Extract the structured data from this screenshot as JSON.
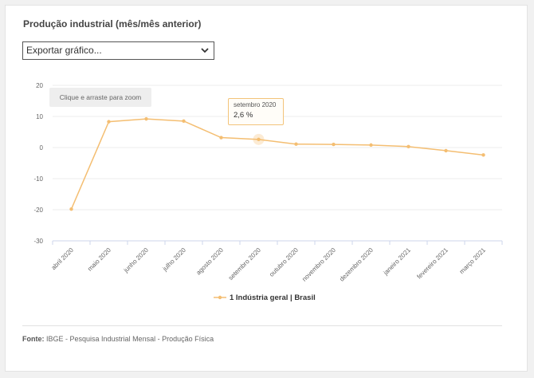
{
  "title": "Produção industrial (mês/mês anterior)",
  "export_select": {
    "label": "Exportar gráfico..."
  },
  "zoom_hint": "Clique e arraste para zoom",
  "tooltip": {
    "label": "setembro 2020",
    "value": "2,6 %"
  },
  "legend": {
    "label": "1 Indústria geral | Brasil"
  },
  "source": {
    "prefix": "Fonte:",
    "text": "IBGE - Pesquisa Industrial Mensal - Produção Física"
  },
  "colors": {
    "series": "#f4be72",
    "grid": "#ececec",
    "axis": "#ccd6eb",
    "tick_text": "#666666"
  },
  "chart_data": {
    "type": "line",
    "title": "Produção industrial (mês/mês anterior)",
    "categories": [
      "abril 2020",
      "maio 2020",
      "junho 2020",
      "julho 2020",
      "agosto 2020",
      "setembro 2020",
      "outubro 2020",
      "novembro 2020",
      "dezembro 2020",
      "janeiro 2021",
      "fevereiro 2021",
      "março 2021"
    ],
    "series": [
      {
        "name": "1 Indústria geral | Brasil",
        "values": [
          -19.8,
          8.3,
          9.2,
          8.5,
          3.2,
          2.6,
          1.1,
          1.0,
          0.8,
          0.3,
          -1.0,
          -2.4
        ]
      }
    ],
    "yticks": [
      20,
      10,
      0,
      -10,
      -20,
      -30
    ],
    "ylim": [
      -30,
      20
    ],
    "highlighted": "setembro 2020",
    "legend_position": "bottom-center",
    "grid": true
  }
}
